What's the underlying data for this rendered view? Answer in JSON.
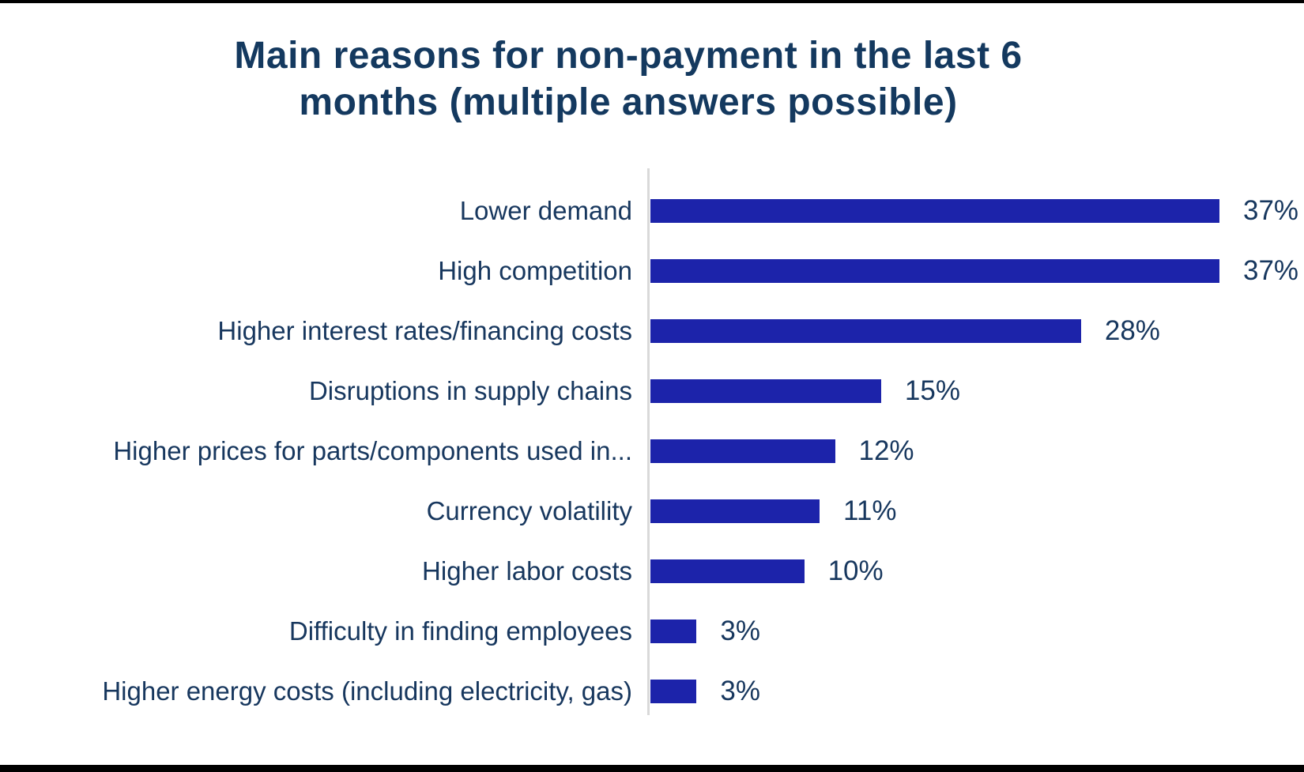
{
  "page": {
    "background": "#ffffff",
    "top_border_color": "#000000",
    "bottom_border_color": "#000000"
  },
  "chart_data": {
    "type": "bar",
    "orientation": "horizontal",
    "title": "Main reasons for non-payment in the last 6\nmonths (multiple answers possible)",
    "categories": [
      "Lower demand",
      "High competition",
      "Higher interest rates/financing costs",
      "Disruptions in supply chains",
      "Higher prices for parts/components used in...",
      "Currency volatility",
      "Higher labor costs",
      "Difficulty in finding employees",
      "Higher energy costs (including electricity, gas)"
    ],
    "values": [
      37,
      37,
      28,
      15,
      12,
      11,
      10,
      3,
      3
    ],
    "value_labels": [
      "37%",
      "37%",
      "28%",
      "15%",
      "12%",
      "11%",
      "10%",
      "3%",
      "3%"
    ],
    "xlabel": "",
    "ylabel": "",
    "xlim": [
      0,
      40
    ],
    "grid": false,
    "legend": false,
    "data_labels": true,
    "colors": {
      "bar": "#1C23AA",
      "category_text": "#17375E",
      "value_text": "#17375E",
      "title_text": "#14395F",
      "axis_line": "#D9D9D9"
    }
  }
}
